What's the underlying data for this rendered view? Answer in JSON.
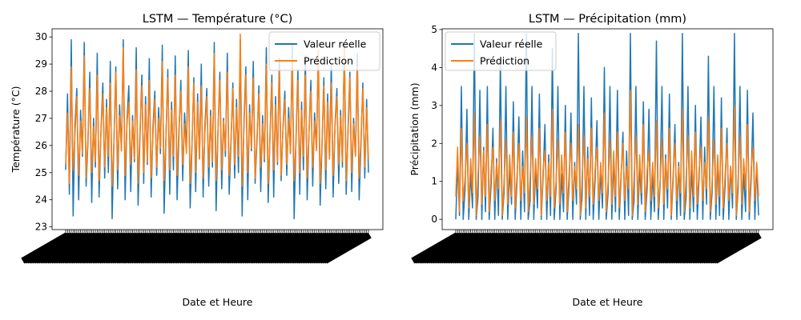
{
  "chart_data": [
    {
      "type": "line",
      "title": "LSTM — Température (°C)",
      "xlabel": "Date et Heure",
      "ylabel": "Température (°C)",
      "ylim": [
        22.9,
        30.3
      ],
      "yticks": [
        23,
        24,
        25,
        26,
        27,
        28,
        29,
        30
      ],
      "legend": "top-right",
      "grid": false,
      "series": [
        {
          "name": "Valeur réelle",
          "color": "#1f77b4",
          "values": [
            25.1,
            27.9,
            24.2,
            29.9,
            23.4,
            26.8,
            28.1,
            24.0,
            27.3,
            25.6,
            29.8,
            24.5,
            26.1,
            28.7,
            23.9,
            27.0,
            25.2,
            29.4,
            24.1,
            26.6,
            28.3,
            24.8,
            27.7,
            25.0,
            29.1,
            23.3,
            26.2,
            28.9,
            24.4,
            27.5,
            25.8,
            29.9,
            24.0,
            26.9,
            28.2,
            24.3,
            27.1,
            25.4,
            29.6,
            23.8,
            26.4,
            28.6,
            24.6,
            27.8,
            25.3,
            29.2,
            24.1,
            26.7,
            28.0,
            24.9,
            27.4,
            25.7,
            29.7,
            23.5,
            26.3,
            28.8,
            24.2,
            27.6,
            25.1,
            29.3,
            24.0,
            26.5,
            28.4,
            24.7,
            27.2,
            25.9,
            29.5,
            23.7,
            26.0,
            28.5,
            24.3,
            27.9,
            25.5,
            29.0,
            24.1,
            26.8,
            28.1,
            24.5,
            27.3,
            25.2,
            29.8,
            23.6,
            26.6,
            28.7,
            24.4,
            27.0,
            25.6,
            29.4,
            24.2,
            26.1,
            28.3,
            24.8,
            27.7,
            25.0,
            29.9,
            23.4,
            26.9,
            28.9,
            24.0,
            27.5,
            25.8,
            29.1,
            24.6,
            26.2,
            28.2,
            24.3,
            27.1,
            25.4,
            29.6,
            23.9,
            26.4,
            28.6,
            24.1,
            27.8,
            25.3,
            29.2,
            24.7,
            26.7,
            28.0,
            24.9,
            27.4,
            25.7,
            29.7,
            23.3,
            26.3,
            28.8,
            24.2,
            27.6,
            25.1,
            29.3,
            24.0,
            26.5,
            28.4,
            24.5,
            27.2,
            25.9,
            29.5,
            23.8,
            26.0,
            28.5,
            24.4,
            27.9,
            25.5,
            29.0,
            24.1,
            26.8,
            28.1,
            24.6,
            27.3,
            25.2,
            29.8,
            24.2,
            26.6,
            28.7,
            24.3,
            27.0,
            25.6,
            29.4,
            24.0,
            26.1,
            28.3,
            24.8,
            27.7,
            25.0
          ]
        },
        {
          "name": "Prédiction",
          "color": "#ff7f0e",
          "values": [
            25.3,
            27.2,
            24.6,
            28.9,
            25.1,
            26.4,
            27.8,
            24.9,
            26.9,
            25.7,
            29.3,
            24.8,
            26.3,
            28.1,
            25.0,
            26.7,
            25.4,
            28.6,
            24.7,
            26.5,
            27.9,
            25.2,
            27.4,
            25.6,
            28.3,
            24.5,
            26.2,
            28.7,
            25.1,
            27.1,
            25.8,
            29.6,
            24.9,
            26.8,
            27.6,
            25.3,
            26.9,
            25.5,
            28.8,
            24.6,
            26.6,
            28.2,
            25.0,
            27.5,
            25.4,
            28.4,
            24.8,
            26.4,
            27.7,
            25.2,
            27.0,
            25.9,
            29.1,
            24.7,
            26.3,
            28.5,
            25.1,
            27.3,
            25.6,
            28.6,
            24.9,
            26.7,
            28.0,
            25.3,
            26.8,
            25.7,
            28.9,
            24.6,
            26.1,
            28.3,
            25.0,
            27.6,
            25.5,
            28.2,
            24.8,
            26.5,
            27.8,
            25.2,
            27.1,
            25.4,
            29.4,
            24.7,
            26.6,
            28.4,
            25.1,
            26.9,
            25.8,
            28.7,
            24.9,
            26.2,
            28.1,
            25.3,
            27.4,
            25.6,
            30.1,
            24.5,
            26.7,
            28.6,
            25.0,
            27.2,
            25.9,
            28.5,
            24.8,
            26.4,
            27.9,
            25.2,
            26.8,
            25.5,
            29.0,
            24.6,
            26.3,
            28.3,
            25.1,
            27.5,
            25.4,
            28.8,
            24.9,
            26.6,
            27.7,
            25.3,
            27.0,
            25.7,
            29.2,
            24.7,
            26.2,
            28.4,
            25.0,
            27.3,
            25.6,
            28.6,
            24.8,
            26.5,
            28.0,
            25.2,
            26.9,
            25.8,
            29.5,
            24.6,
            26.1,
            28.2,
            25.1,
            27.6,
            25.5,
            28.3,
            24.9,
            26.7,
            27.8,
            25.3,
            27.1,
            25.4,
            29.7,
            24.7,
            26.4,
            28.5,
            25.0,
            26.8,
            25.6,
            28.9,
            24.8,
            26.3,
            28.1,
            25.2,
            27.4,
            25.5
          ]
        }
      ]
    },
    {
      "type": "line",
      "title": "LSTM — Précipitation (mm)",
      "xlabel": "Date et Heure",
      "ylabel": "Précipitation (mm)",
      "ylim": [
        -0.27,
        5.02
      ],
      "yticks": [
        0,
        1,
        2,
        3,
        4,
        5
      ],
      "legend": "top-left",
      "grid": false,
      "series": [
        {
          "name": "Valeur réelle",
          "color": "#1f77b4",
          "values": [
            0.0,
            1.5,
            0.1,
            3.5,
            0.0,
            0.8,
            2.9,
            0.0,
            1.2,
            0.3,
            4.9,
            0.0,
            0.6,
            3.4,
            0.0,
            1.9,
            0.2,
            3.5,
            0.0,
            0.9,
            2.4,
            0.0,
            1.6,
            0.1,
            4.2,
            0.0,
            0.7,
            3.5,
            0.0,
            1.3,
            0.4,
            3.1,
            0.0,
            1.0,
            2.7,
            0.0,
            1.8,
            0.2,
            4.9,
            0.0,
            0.5,
            3.5,
            0.0,
            1.4,
            0.3,
            3.3,
            0.0,
            1.1,
            2.5,
            0.0,
            1.7,
            0.1,
            4.5,
            0.0,
            0.8,
            3.5,
            0.0,
            1.2,
            0.2,
            3.0,
            0.0,
            0.9,
            2.8,
            0.0,
            1.5,
            0.4,
            4.9,
            0.0,
            0.6,
            3.5,
            0.0,
            1.9,
            0.1,
            3.2,
            0.0,
            1.0,
            2.6,
            0.0,
            1.3,
            0.3,
            4.0,
            0.0,
            0.7,
            3.5,
            0.0,
            1.6,
            0.2,
            3.4,
            0.0,
            1.1,
            2.3,
            0.0,
            1.8,
            0.1,
            4.9,
            0.0,
            0.5,
            3.5,
            0.0,
            1.4,
            0.4,
            3.1,
            0.0,
            0.8,
            2.9,
            0.0,
            1.2,
            0.2,
            4.7,
            0.0,
            0.9,
            3.5,
            0.0,
            1.7,
            0.3,
            3.3,
            0.0,
            1.0,
            2.5,
            0.0,
            1.5,
            0.1,
            4.9,
            0.0,
            0.6,
            3.5,
            0.0,
            1.3,
            0.2,
            3.0,
            0.0,
            1.1,
            2.7,
            0.0,
            1.9,
            0.4,
            4.3,
            0.0,
            0.7,
            3.5,
            0.0,
            1.6,
            0.1,
            3.2,
            0.0,
            0.9,
            2.4,
            0.0,
            1.4,
            0.3,
            4.9,
            0.0,
            0.8,
            3.5,
            0.0,
            1.2,
            0.2,
            3.4,
            0.0,
            1.0,
            2.8,
            0.0,
            1.5,
            0.1
          ]
        },
        {
          "name": "Prédiction",
          "color": "#ff7f0e",
          "values": [
            0.6,
            1.9,
            0.2,
            2.4,
            0.5,
            1.1,
            2.0,
            0.3,
            1.6,
            0.7,
            2.8,
            0.1,
            1.2,
            2.2,
            0.4,
            1.8,
            0.6,
            2.5,
            0.2,
            1.3,
            1.9,
            0.5,
            1.5,
            0.8,
            2.6,
            0.1,
            1.0,
            2.1,
            0.4,
            1.7,
            0.6,
            2.3,
            0.3,
            1.2,
            2.0,
            0.5,
            1.4,
            0.7,
            2.7,
            0.2,
            1.1,
            2.2,
            0.4,
            1.6,
            0.8,
            2.4,
            0.1,
            1.3,
            1.8,
            0.5,
            1.5,
            0.6,
            2.9,
            0.3,
            1.0,
            2.1,
            0.4,
            1.7,
            0.7,
            2.3,
            0.2,
            1.2,
            2.0,
            0.5,
            1.4,
            0.8,
            2.5,
            0.1,
            1.1,
            2.2,
            0.3,
            1.6,
            0.6,
            2.4,
            0.4,
            1.3,
            1.9,
            0.5,
            1.5,
            0.7,
            2.8,
            0.2,
            1.0,
            2.1,
            0.4,
            1.8,
            0.6,
            2.3,
            0.3,
            1.2,
            2.0,
            0.5,
            1.4,
            0.8,
            3.4,
            0.1,
            1.1,
            2.2,
            0.4,
            1.7,
            0.7,
            2.5,
            0.2,
            1.3,
            1.8,
            0.5,
            1.5,
            0.6,
            2.6,
            0.3,
            1.0,
            2.1,
            0.4,
            1.6,
            0.8,
            2.4,
            0.1,
            1.2,
            2.0,
            0.5,
            1.4,
            0.7,
            2.9,
            0.2,
            1.1,
            2.2,
            0.3,
            1.8,
            0.6,
            2.3,
            0.4,
            1.3,
            1.9,
            0.5,
            1.5,
            0.8,
            2.7,
            0.2,
            1.0,
            2.1,
            0.4,
            1.7,
            0.6,
            2.4,
            0.3,
            1.2,
            2.0,
            0.5,
            1.4,
            0.7,
            3.0,
            0.1,
            1.1,
            2.2,
            0.4,
            1.6,
            0.8,
            2.5,
            0.2,
            1.3,
            1.9,
            0.5,
            1.5,
            0.6
          ]
        }
      ]
    }
  ]
}
